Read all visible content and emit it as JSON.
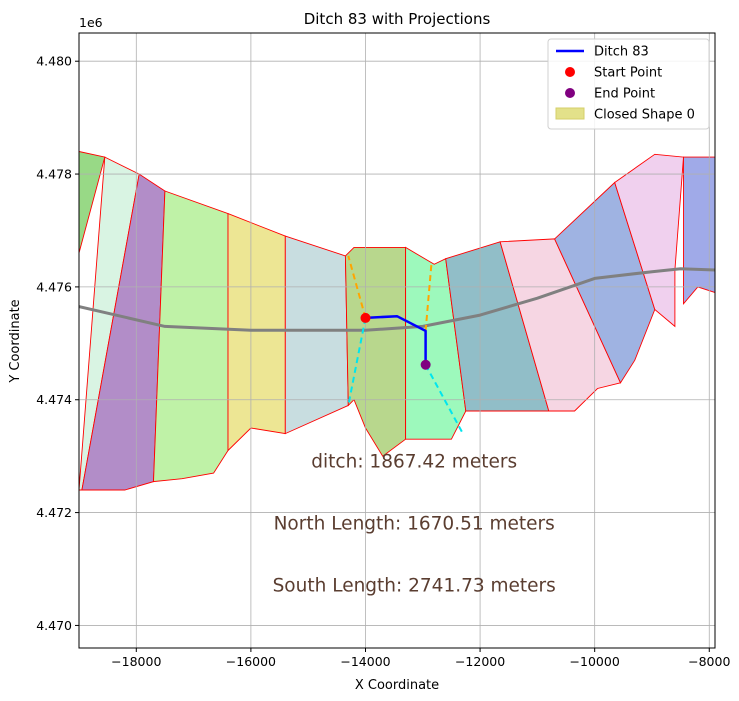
{
  "chart_data": {
    "type": "line",
    "title": "Ditch 83 with Projections",
    "xlabel": "X Coordinate",
    "ylabel": "Y Coordinate",
    "y_offset_label": "1e6",
    "xlim": [
      -19000,
      -7900
    ],
    "ylim": [
      4469600,
      4480500
    ],
    "x_ticks": [
      -18000,
      -16000,
      -14000,
      -12000,
      -10000,
      -8000
    ],
    "x_tick_labels": [
      "−18000",
      "−16000",
      "−14000",
      "−12000",
      "−10000",
      "−8000"
    ],
    "y_ticks": [
      4470000,
      4472000,
      4474000,
      4476000,
      4478000,
      4480000
    ],
    "y_tick_labels": [
      "4.470",
      "4.472",
      "4.474",
      "4.476",
      "4.478",
      "4.480"
    ],
    "grid": true,
    "legend_position": "top-right",
    "legend": [
      {
        "label": "Ditch 83",
        "kind": "line",
        "color": "#0000ff"
      },
      {
        "label": "Start Point",
        "kind": "marker",
        "color": "#ff0000"
      },
      {
        "label": "End Point",
        "kind": "marker",
        "color": "#800080"
      },
      {
        "label": "Closed Shape 0",
        "kind": "patch",
        "color": "#e3e18a"
      }
    ],
    "shapes": [
      {
        "color": "#98d986",
        "points": [
          [
            -19000,
            4478400
          ],
          [
            -18550,
            4478300
          ],
          [
            -19000,
            4476600
          ]
        ]
      },
      {
        "color": "#d9f4e3",
        "points": [
          [
            -18550,
            4478300
          ],
          [
            -17950,
            4478000
          ],
          [
            -18950,
            4472400
          ],
          [
            -19000,
            4472400
          ]
        ]
      },
      {
        "color": "#b28dc8",
        "points": [
          [
            -17950,
            4478000
          ],
          [
            -17500,
            4477700
          ],
          [
            -17700,
            4472550
          ],
          [
            -18200,
            4472400
          ],
          [
            -18950,
            4472400
          ]
        ]
      },
      {
        "color": "#bff2a7",
        "points": [
          [
            -17500,
            4477700
          ],
          [
            -16400,
            4477300
          ],
          [
            -16400,
            4473100
          ],
          [
            -16650,
            4472700
          ],
          [
            -17200,
            4472600
          ],
          [
            -17700,
            4472550
          ]
        ]
      },
      {
        "color": "#ede694",
        "points": [
          [
            -16400,
            4477300
          ],
          [
            -15400,
            4476900
          ],
          [
            -15400,
            4473400
          ],
          [
            -16000,
            4473500
          ],
          [
            -16400,
            4473100
          ]
        ]
      },
      {
        "color": "#c8dde0",
        "points": [
          [
            -15400,
            4476900
          ],
          [
            -14350,
            4476550
          ],
          [
            -14300,
            4473900
          ],
          [
            -15400,
            4473400
          ]
        ]
      },
      {
        "color": "#b8d78d",
        "points": [
          [
            -14350,
            4476550
          ],
          [
            -14200,
            4476700
          ],
          [
            -13300,
            4476700
          ],
          [
            -13300,
            4473300
          ],
          [
            -13700,
            4473000
          ],
          [
            -14000,
            4473500
          ],
          [
            -14200,
            4474000
          ],
          [
            -14300,
            4473900
          ]
        ]
      },
      {
        "color": "#9df9bc",
        "points": [
          [
            -13300,
            4476700
          ],
          [
            -12800,
            4476400
          ],
          [
            -12600,
            4476500
          ],
          [
            -12250,
            4473800
          ],
          [
            -12500,
            4473300
          ],
          [
            -13300,
            4473300
          ]
        ]
      },
      {
        "color": "#91bec8",
        "points": [
          [
            -12600,
            4476500
          ],
          [
            -11650,
            4476800
          ],
          [
            -10800,
            4473800
          ],
          [
            -12250,
            4473800
          ]
        ]
      },
      {
        "color": "#f6d6e3",
        "points": [
          [
            -11650,
            4476800
          ],
          [
            -10700,
            4476850
          ],
          [
            -9550,
            4474300
          ],
          [
            -9950,
            4474200
          ],
          [
            -10350,
            4473800
          ],
          [
            -10800,
            4473800
          ]
        ]
      },
      {
        "color": "#9fb3e2",
        "points": [
          [
            -10700,
            4476850
          ],
          [
            -9650,
            4477850
          ],
          [
            -8950,
            4475600
          ],
          [
            -9300,
            4474700
          ],
          [
            -9550,
            4474300
          ]
        ]
      },
      {
        "color": "#f0d0ee",
        "points": [
          [
            -9650,
            4477850
          ],
          [
            -8950,
            4478350
          ],
          [
            -8450,
            4478300
          ],
          [
            -8600,
            4476300
          ],
          [
            -8600,
            4475300
          ],
          [
            -8950,
            4475600
          ]
        ]
      },
      {
        "color": "#a0aae8",
        "points": [
          [
            -8450,
            4478300
          ],
          [
            -7900,
            4478300
          ],
          [
            -7900,
            4475900
          ],
          [
            -8200,
            4476000
          ],
          [
            -8450,
            4475700
          ]
        ]
      }
    ],
    "series": [
      {
        "name": "Ditch 83",
        "color": "#0000ff",
        "points": [
          [
            -14000,
            4475450
          ],
          [
            -13450,
            4475480
          ],
          [
            -12950,
            4475220
          ],
          [
            -12950,
            4474620
          ]
        ]
      },
      {
        "color": "#808080",
        "points": [
          [
            -19000,
            4475650
          ],
          [
            -17500,
            4475300
          ],
          [
            -16000,
            4475230
          ],
          [
            -14000,
            4475230
          ],
          [
            -13000,
            4475300
          ],
          [
            -12000,
            4475500
          ],
          [
            -11000,
            4475800
          ],
          [
            -10000,
            4476150
          ],
          [
            -9000,
            4476270
          ],
          [
            -8500,
            4476320
          ],
          [
            -7900,
            4476300
          ]
        ]
      },
      {
        "color": "#ffa500",
        "dashed": true,
        "points": [
          [
            -14000,
            4475450
          ],
          [
            -14300,
            4476550
          ]
        ]
      },
      {
        "color": "#00e5ee",
        "dashed": true,
        "points": [
          [
            -14000,
            4475450
          ],
          [
            -14300,
            4473900
          ]
        ]
      },
      {
        "color": "#ffa500",
        "dashed": true,
        "points": [
          [
            -12950,
            4475220
          ],
          [
            -12850,
            4476400
          ]
        ]
      },
      {
        "color": "#00e5ee",
        "dashed": true,
        "points": [
          [
            -12950,
            4474620
          ],
          [
            -12300,
            4473400
          ]
        ]
      }
    ],
    "start_point": {
      "x": -14000,
      "y": 4475450
    },
    "end_point": {
      "x": -12950,
      "y": 4474620
    },
    "annotations": [
      {
        "text": "ditch: 1867.42 meters",
        "x": -13150,
        "y": 4472800
      },
      {
        "text": "North Length: 1670.51 meters",
        "x": -13150,
        "y": 4471700
      },
      {
        "text": "South Length: 2741.73 meters",
        "x": -13150,
        "y": 4470600
      }
    ]
  }
}
